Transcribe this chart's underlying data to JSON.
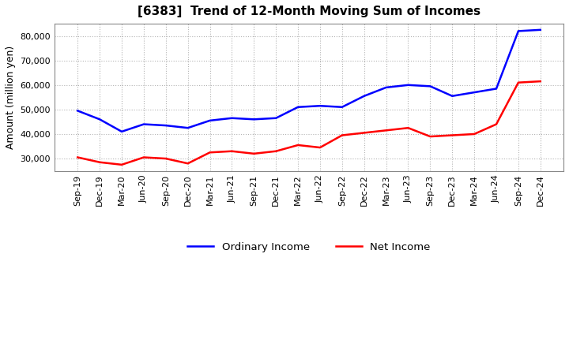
{
  "title": "[6383]  Trend of 12-Month Moving Sum of Incomes",
  "ylabel": "Amount (million yen)",
  "background_color": "#ffffff",
  "grid_color": "#aaaaaa",
  "plot_bg_color": "#ffffff",
  "x_labels": [
    "Sep-19",
    "Dec-19",
    "Mar-20",
    "Jun-20",
    "Sep-20",
    "Dec-20",
    "Mar-21",
    "Jun-21",
    "Sep-21",
    "Dec-21",
    "Mar-22",
    "Jun-22",
    "Sep-22",
    "Dec-22",
    "Mar-23",
    "Jun-23",
    "Sep-23",
    "Dec-23",
    "Mar-24",
    "Jun-24",
    "Sep-24",
    "Dec-24"
  ],
  "ordinary_income": [
    49500,
    46000,
    41000,
    44000,
    43500,
    42500,
    45500,
    46500,
    46000,
    46500,
    51000,
    51500,
    51000,
    55500,
    59000,
    60000,
    59500,
    55500,
    57000,
    58500,
    82000,
    82500
  ],
  "net_income": [
    30500,
    28500,
    27500,
    30500,
    30000,
    28000,
    32500,
    33000,
    32000,
    33000,
    35500,
    34500,
    39500,
    40500,
    41500,
    42500,
    39000,
    39500,
    40000,
    44000,
    61000,
    61500
  ],
  "ordinary_color": "#0000ff",
  "net_color": "#ff0000",
  "ylim_min": 25000,
  "ylim_max": 85000,
  "yticks": [
    30000,
    40000,
    50000,
    60000,
    70000,
    80000
  ],
  "line_width": 1.8,
  "legend_labels": [
    "Ordinary Income",
    "Net Income"
  ],
  "title_fontsize": 11,
  "ylabel_fontsize": 9,
  "tick_fontsize": 8
}
